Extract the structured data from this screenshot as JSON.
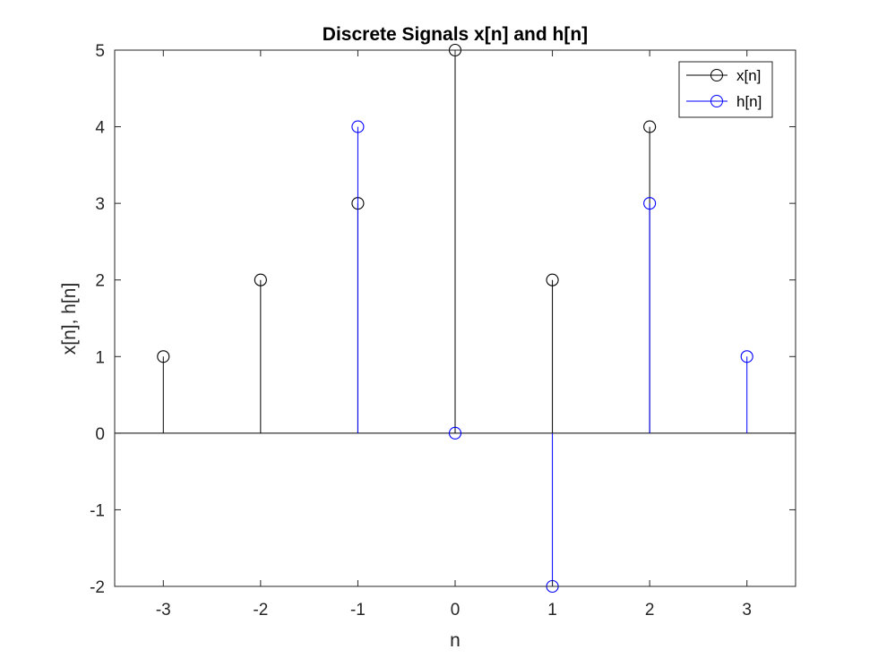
{
  "chart_data": {
    "type": "stem",
    "title": "Discrete Signals x[n] and h[n]",
    "xlabel": "n",
    "ylabel": "x[n], h[n]",
    "xlim": [
      -3.5,
      3.5
    ],
    "ylim": [
      -2,
      5
    ],
    "xticks": [
      "-3",
      "-2",
      "-1",
      "0",
      "1",
      "2",
      "3"
    ],
    "yticks": [
      "-2",
      "-1",
      "0",
      "1",
      "2",
      "3",
      "4",
      "5"
    ],
    "grid": false,
    "legend_position": "top-right",
    "series": [
      {
        "name": "x[n]",
        "color": "#000000",
        "x": [
          -3,
          -2,
          -1,
          0,
          1,
          2
        ],
        "values": [
          1,
          2,
          3,
          5,
          2,
          4
        ]
      },
      {
        "name": "h[n]",
        "color": "#0000ff",
        "x": [
          -1,
          0,
          1,
          2,
          3
        ],
        "values": [
          4,
          0,
          -2,
          3,
          1
        ]
      }
    ]
  }
}
